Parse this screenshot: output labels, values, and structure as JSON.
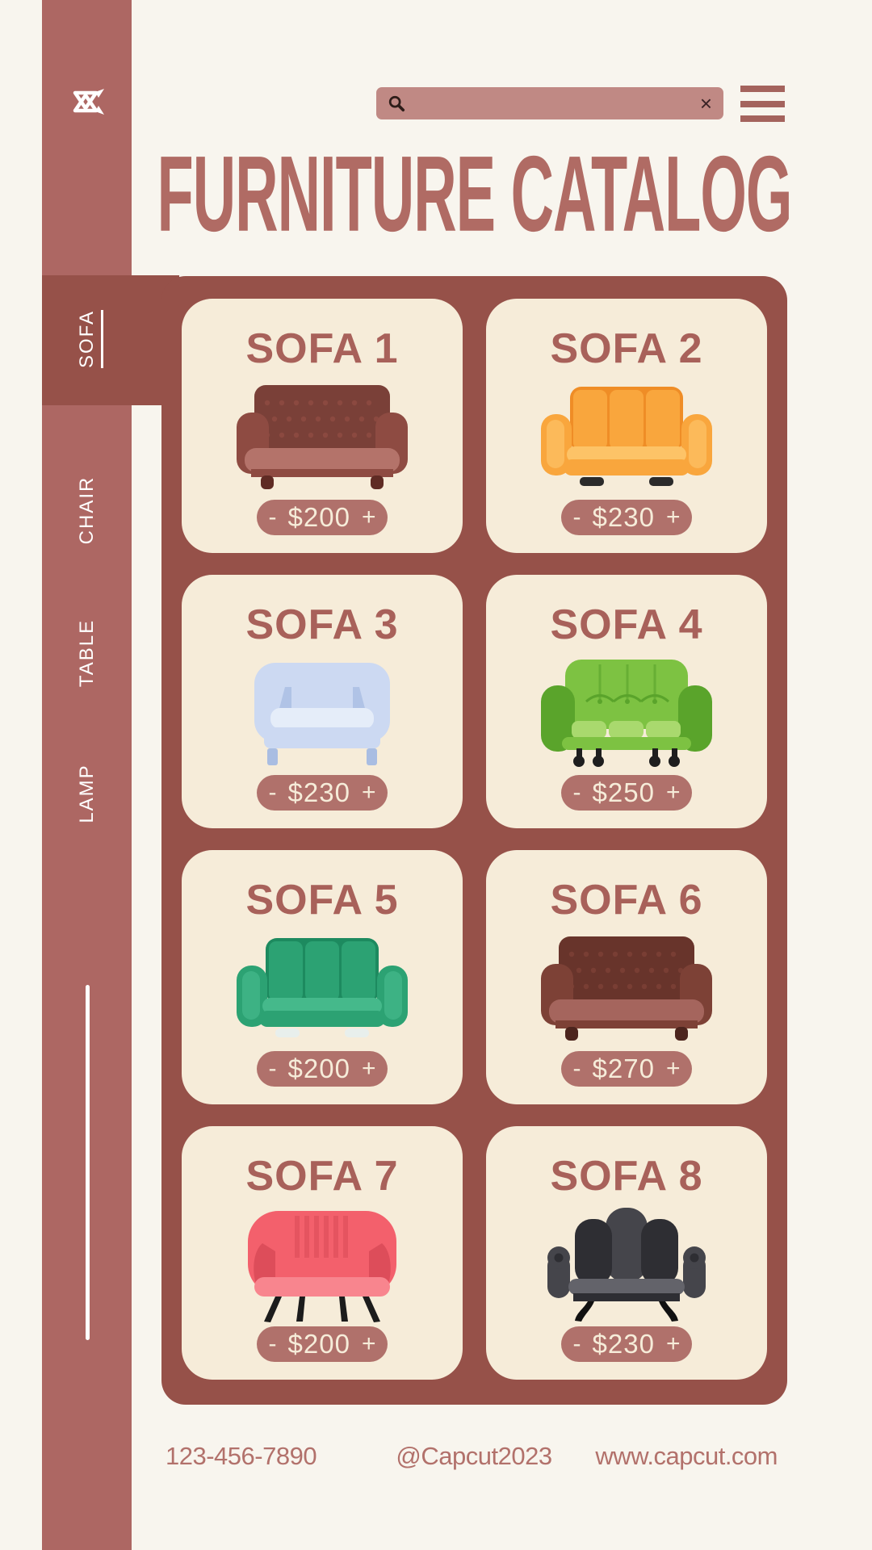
{
  "theme": {
    "background": "#f8f5ee",
    "sidebar": "#ad6763",
    "panel": "#965149",
    "card": "#f6ecd9",
    "pill": "#b0716b",
    "search_bar": "#c08984",
    "search_icon": "#2e1d19",
    "clear_icon": "#3a2326",
    "menu_icon": "#a4635d",
    "logo": "#ffffff",
    "title_text": "#b06b64",
    "card_title_text": "#a8615a",
    "pill_text": "#f6ecd9",
    "nav_text": "#ffffff",
    "footer_text": "#b2716b"
  },
  "sidebar": {
    "logo_icon": "capcut-logo",
    "nav_items": [
      {
        "label": "SOFA",
        "active": true
      },
      {
        "label": "CHAIR",
        "active": false
      },
      {
        "label": "TABLE",
        "active": false
      },
      {
        "label": "LAMP",
        "active": false
      }
    ]
  },
  "header": {
    "search": {
      "value": "",
      "placeholder": "",
      "icon": "magnifier",
      "clear_label": "×"
    },
    "menu_icon": "hamburger",
    "title": "FURNITURE CATALOG"
  },
  "catalog": {
    "stepper": {
      "minus": "-",
      "plus": "+"
    },
    "items": [
      {
        "name": "SOFA 1",
        "price": "$200",
        "style": "tufted",
        "colors": {
          "main": "#8e4b42",
          "dark": "#7a4038",
          "light": "#b4736a",
          "leg": "#5f2b24"
        }
      },
      {
        "name": "SOFA 2",
        "price": "$230",
        "style": "modern",
        "colors": {
          "main": "#f9a63d",
          "dark": "#ef8d26",
          "light": "#fdc367",
          "leg": "#2b2b2b"
        }
      },
      {
        "name": "SOFA 3",
        "price": "$230",
        "style": "simple",
        "colors": {
          "main": "#ccd9f2",
          "dark": "#a9bde2",
          "light": "#e5edf9",
          "leg": "#b9c8e8"
        }
      },
      {
        "name": "SOFA 4",
        "price": "$250",
        "style": "round",
        "colors": {
          "main": "#7dc242",
          "dark": "#5aa42b",
          "light": "#a9d96e",
          "leg": "#1e1e1e"
        }
      },
      {
        "name": "SOFA 5",
        "price": "$200",
        "style": "modern",
        "colors": {
          "main": "#2ca273",
          "dark": "#1d8a5f",
          "light": "#45b98b",
          "leg": "#e8efec"
        }
      },
      {
        "name": "SOFA 6",
        "price": "$270",
        "style": "tufted",
        "colors": {
          "main": "#7d4136",
          "dark": "#68342b",
          "light": "#a5655d",
          "leg": "#4c241d"
        }
      },
      {
        "name": "SOFA 7",
        "price": "$200",
        "style": "shell",
        "colors": {
          "main": "#f3606c",
          "dark": "#d84a57",
          "light": "#f8858e",
          "leg": "#1c1c1c"
        }
      },
      {
        "name": "SOFA 8",
        "price": "$230",
        "style": "wing",
        "colors": {
          "main": "#45454b",
          "dark": "#2e2e33",
          "light": "#63636a",
          "leg": "#111111"
        }
      }
    ]
  },
  "footer": {
    "phone": "123-456-7890",
    "handle": "@Capcut2023",
    "website": "www.capcut.com"
  }
}
